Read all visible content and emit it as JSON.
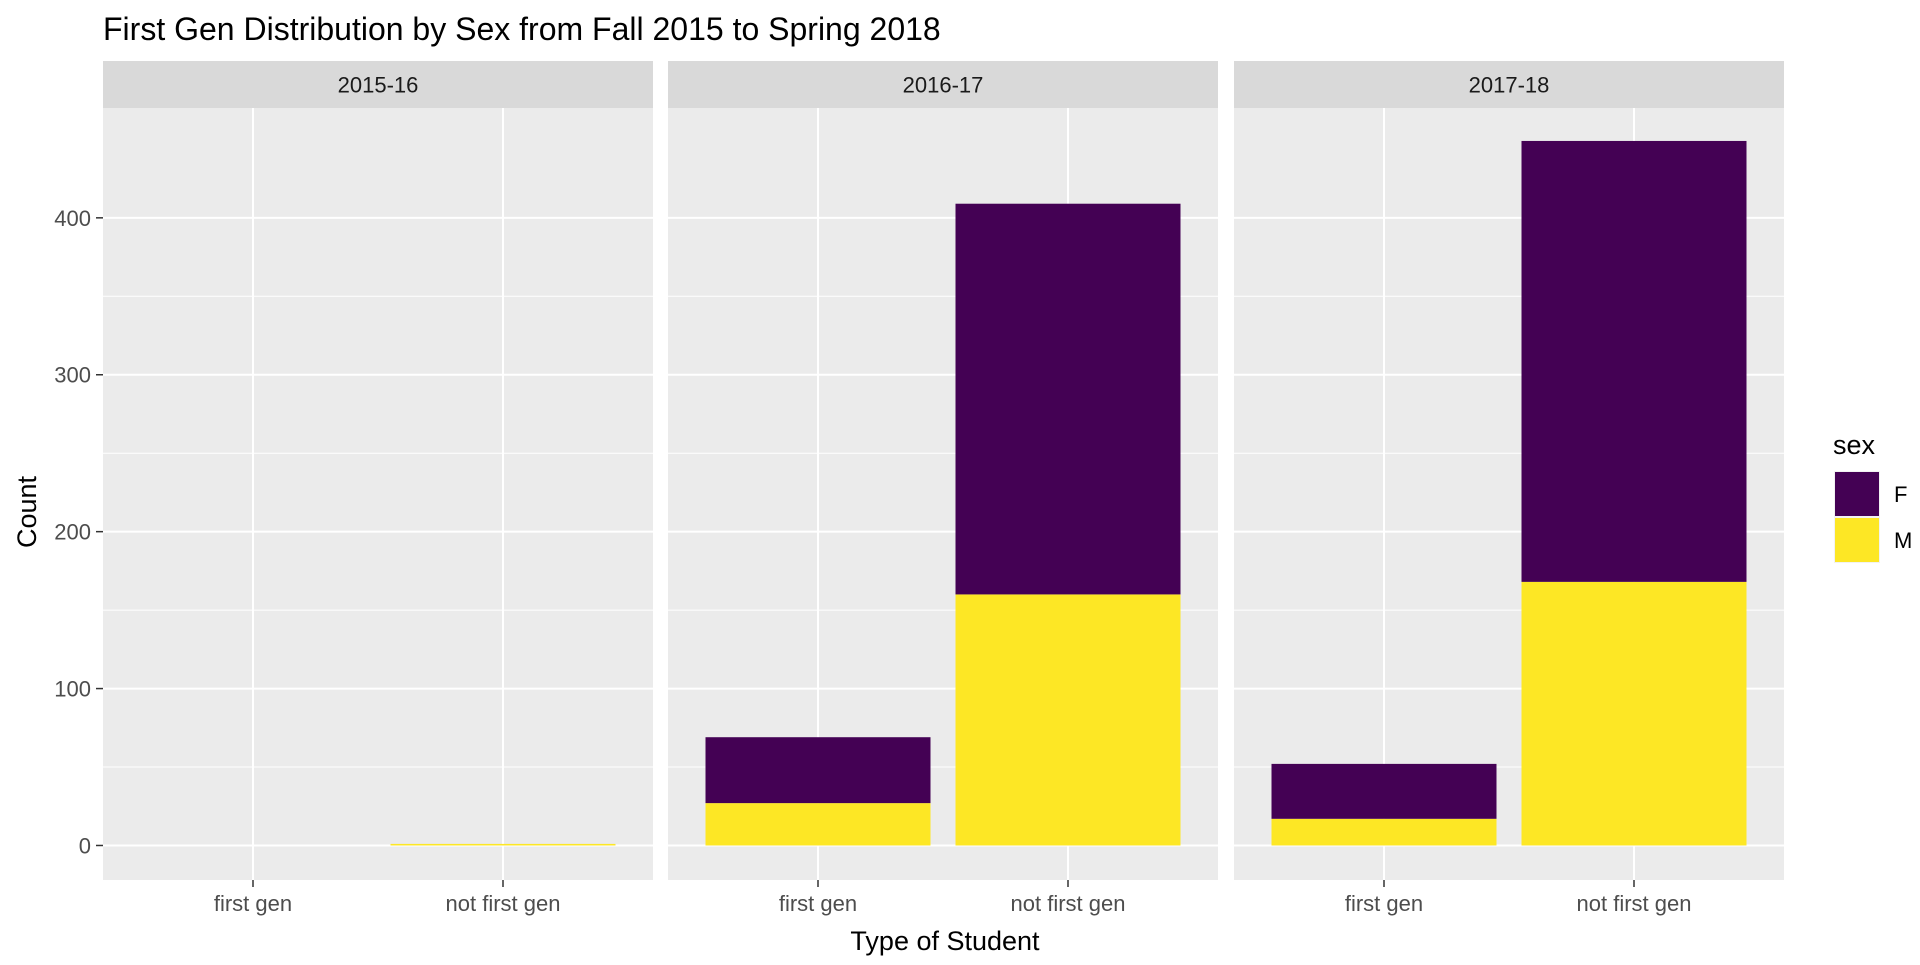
{
  "chart_data": {
    "type": "bar",
    "stacked": true,
    "title": "First Gen Distribution by Sex from Fall 2015 to Spring 2018",
    "xlabel": "Type of Student",
    "ylabel": "Count",
    "ylim": [
      -22,
      470
    ],
    "yticks": [
      0,
      100,
      200,
      300,
      400
    ],
    "categories": [
      "first gen",
      "not first gen"
    ],
    "grid": true,
    "legend": {
      "title": "sex",
      "position": "right"
    },
    "series_colors": {
      "F": "#440154",
      "M": "#FDE725"
    },
    "facets": [
      {
        "label": "2015-16",
        "series": [
          {
            "name": "F",
            "values": [
              0,
              0
            ]
          },
          {
            "name": "M",
            "values": [
              0,
              1
            ]
          }
        ]
      },
      {
        "label": "2016-17",
        "series": [
          {
            "name": "F",
            "values": [
              42,
              249
            ]
          },
          {
            "name": "M",
            "values": [
              27,
              160
            ]
          }
        ]
      },
      {
        "label": "2017-18",
        "series": [
          {
            "name": "F",
            "values": [
              35,
              281
            ]
          },
          {
            "name": "M",
            "values": [
              17,
              168
            ]
          }
        ]
      }
    ]
  },
  "colors": {
    "panel_background": "#EBEBEB",
    "strip_background": "#D9D9D9",
    "gridline": "#FFFFFF",
    "tick": "#333333"
  }
}
